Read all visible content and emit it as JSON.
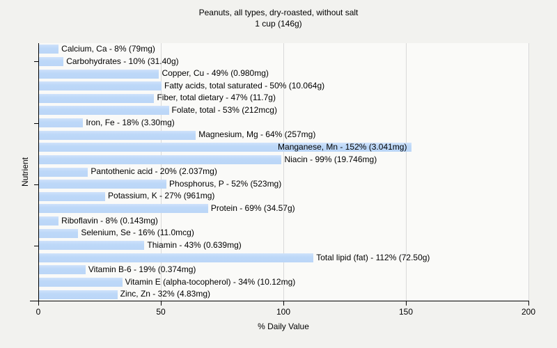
{
  "header": {
    "title_line1": "Peanuts, all types, dry-roasted, without salt",
    "title_line2": "1 cup (146g)"
  },
  "chart_data": {
    "type": "bar",
    "orientation": "horizontal",
    "title": "Peanuts, all types, dry-roasted, without salt",
    "subtitle": "1 cup (146g)",
    "xlabel": "% Daily Value",
    "ylabel": "Nutrient",
    "xlim": [
      0,
      200
    ],
    "xticks": [
      0,
      50,
      100,
      150,
      200
    ],
    "grid": "vertical-gridlines-at-xticks",
    "legend": "none",
    "ytick_marks_at_category_indices": [
      1,
      6,
      11,
      16
    ],
    "categories": [
      "Calcium, Ca",
      "Carbohydrates",
      "Copper, Cu",
      "Fatty acids, total saturated",
      "Fiber, total dietary",
      "Folate, total",
      "Iron, Fe",
      "Magnesium, Mg",
      "Manganese, Mn",
      "Niacin",
      "Pantothenic acid",
      "Phosphorus, P",
      "Potassium, K",
      "Protein",
      "Riboflavin",
      "Selenium, Se",
      "Thiamin",
      "Total lipid (fat)",
      "Vitamin B-6",
      "Vitamin E (alpha-tocopherol)",
      "Zinc, Zn"
    ],
    "values": [
      8,
      10,
      49,
      50,
      47,
      53,
      18,
      64,
      152,
      99,
      20,
      52,
      27,
      69,
      8,
      16,
      43,
      112,
      19,
      34,
      32
    ],
    "amounts": [
      "79mg",
      "31.40g",
      "0.980mg",
      "10.064g",
      "11.7g",
      "212mcg",
      "3.30mg",
      "257mg",
      "3.041mg",
      "19.746mg",
      "2.037mg",
      "523mg",
      "961mg",
      "34.57g",
      "0.143mg",
      "11.0mcg",
      "0.639mg",
      "72.50g",
      "0.374mg",
      "10.12mg",
      "4.83mg"
    ],
    "bar_labels": [
      "Calcium, Ca - 8% (79mg)",
      "Carbohydrates - 10% (31.40g)",
      "Copper, Cu - 49% (0.980mg)",
      "Fatty acids, total saturated - 50% (10.064g)",
      "Fiber, total dietary - 47% (11.7g)",
      "Folate, total - 53% (212mcg)",
      "Iron, Fe - 18% (3.30mg)",
      "Magnesium, Mg - 64% (257mg)",
      "Manganese, Mn - 152% (3.041mg)",
      "Niacin - 99% (19.746mg)",
      "Pantothenic acid - 20% (2.037mg)",
      "Phosphorus, P - 52% (523mg)",
      "Potassium, K - 27% (961mg)",
      "Protein - 69% (34.57g)",
      "Riboflavin - 8% (0.143mg)",
      "Selenium, Se - 16% (11.0mcg)",
      "Thiamin - 43% (0.639mg)",
      "Total lipid (fat) - 112% (72.50g)",
      "Vitamin B-6 - 19% (0.374mg)",
      "Vitamin E (alpha-tocopherol) - 34% (10.12mg)",
      "Zinc, Zn - 32% (4.83mg)"
    ],
    "colors": {
      "figure_bg": "#f2f2ef",
      "plot_bg": "#fafaf8",
      "bar_fill": "#bdd8f8",
      "bar_fill_highlight": "#cfe2fb",
      "gridline": "#d9d9d9",
      "axis": "#000000",
      "text": "#000000"
    }
  }
}
